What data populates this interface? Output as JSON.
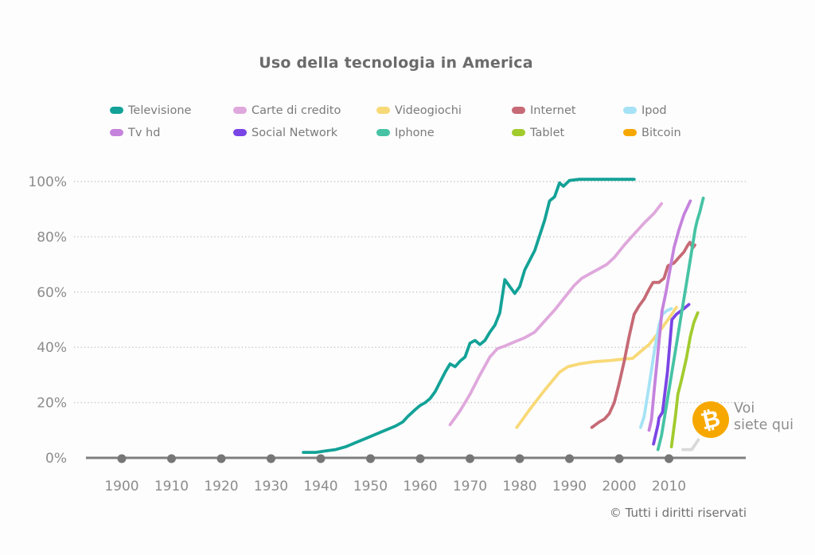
{
  "title_note": "static infographic line chart",
  "annotation": {
    "line1": "Voi",
    "line2": "siete qui",
    "icon": "bitcoin-coin",
    "symbol": "₿",
    "coin_color": "#f7a800"
  },
  "footer": {
    "copyright": "© Tutti i diritti riservati"
  },
  "chart_data": {
    "type": "line",
    "title": "Uso della tecnologia in America",
    "xlabel": "",
    "ylabel": "",
    "xlim": [
      1893,
      2018
    ],
    "ylim": [
      0,
      104
    ],
    "grid": "horizontal dotted",
    "legend_position": "top",
    "x_ticks": [
      1900,
      1910,
      1920,
      1930,
      1940,
      1950,
      1960,
      1970,
      1980,
      1990,
      2000,
      2010
    ],
    "y_ticks": [
      {
        "label": "0%",
        "value": 0
      },
      {
        "label": "20%",
        "value": 20
      },
      {
        "label": "40%",
        "value": 40
      },
      {
        "label": "60%",
        "value": 60
      },
      {
        "label": "80%",
        "value": 80
      },
      {
        "label": "100%",
        "value": 100
      }
    ],
    "colors": {
      "axis": "#7f7f7f",
      "axis_dots": "#767676",
      "gridline": "#c4c4c4",
      "tick_text": "#8c8c8c"
    },
    "series": [
      {
        "id": "televisione",
        "label": "Televisione",
        "color": "#13a297",
        "points": [
          [
            1936.5,
            2
          ],
          [
            1939,
            2
          ],
          [
            1941,
            2.5
          ],
          [
            1943,
            3
          ],
          [
            1945,
            4
          ],
          [
            1947,
            5.5
          ],
          [
            1949,
            7
          ],
          [
            1951,
            8.5
          ],
          [
            1953,
            10
          ],
          [
            1955,
            11.5
          ],
          [
            1956.5,
            13
          ],
          [
            1957.5,
            15
          ],
          [
            1959,
            17.5
          ],
          [
            1960,
            19
          ],
          [
            1961,
            20
          ],
          [
            1962,
            21.5
          ],
          [
            1963,
            24
          ],
          [
            1964,
            27.5
          ],
          [
            1965,
            31
          ],
          [
            1966,
            34
          ],
          [
            1967,
            33
          ],
          [
            1968,
            35
          ],
          [
            1969,
            36.5
          ],
          [
            1970,
            41.5
          ],
          [
            1971,
            42.5
          ],
          [
            1972,
            41
          ],
          [
            1973,
            42.5
          ],
          [
            1974,
            45.5
          ],
          [
            1975,
            48
          ],
          [
            1976,
            52.5
          ],
          [
            1977,
            64.5
          ],
          [
            1978,
            62
          ],
          [
            1979,
            59.5
          ],
          [
            1980,
            62
          ],
          [
            1981,
            68
          ],
          [
            1983,
            75
          ],
          [
            1985,
            86
          ],
          [
            1986,
            93
          ],
          [
            1987,
            94.5
          ],
          [
            1988,
            99.5
          ],
          [
            1988.8,
            98.3
          ],
          [
            1990,
            100.4
          ],
          [
            1992,
            100.8
          ],
          [
            1996,
            100.8
          ],
          [
            2000,
            100.8
          ],
          [
            2003,
            100.8
          ]
        ]
      },
      {
        "id": "carte-di-credito",
        "label": "Carte di credito",
        "color": "#dfa8dc",
        "points": [
          [
            1966,
            12
          ],
          [
            1968,
            17
          ],
          [
            1970,
            23
          ],
          [
            1972,
            30
          ],
          [
            1974,
            36.5
          ],
          [
            1975.5,
            39.5
          ],
          [
            1977,
            40.5
          ],
          [
            1979,
            42
          ],
          [
            1981,
            43.5
          ],
          [
            1983,
            45.5
          ],
          [
            1985,
            49.5
          ],
          [
            1987,
            53.5
          ],
          [
            1989,
            58
          ],
          [
            1991,
            62.5
          ],
          [
            1992.5,
            65
          ],
          [
            1994,
            66.5
          ],
          [
            1996,
            68.5
          ],
          [
            1997.5,
            70
          ],
          [
            1999,
            72.5
          ],
          [
            2001,
            77
          ],
          [
            2003,
            81
          ],
          [
            2005,
            85
          ],
          [
            2007,
            88.5
          ],
          [
            2008.5,
            92
          ]
        ]
      },
      {
        "id": "videogiochi",
        "label": "Videogiochi",
        "color": "#f8d977",
        "points": [
          [
            1979.4,
            11
          ],
          [
            1982,
            17.5
          ],
          [
            1985,
            24.5
          ],
          [
            1988,
            31
          ],
          [
            1989.7,
            33
          ],
          [
            1992,
            34
          ],
          [
            1995,
            34.8
          ],
          [
            1998,
            35.2
          ],
          [
            2001,
            35.8
          ],
          [
            2002.7,
            36
          ],
          [
            2004,
            38
          ],
          [
            2006,
            41
          ],
          [
            2008,
            45.5
          ],
          [
            2010,
            50.5
          ],
          [
            2011.5,
            54.5
          ]
        ]
      },
      {
        "id": "internet",
        "label": "Internet",
        "color": "#c66a76",
        "points": [
          [
            1994.5,
            11
          ],
          [
            1996,
            13
          ],
          [
            1997,
            14
          ],
          [
            1998,
            16
          ],
          [
            1999,
            20
          ],
          [
            2000,
            27
          ],
          [
            2001,
            35
          ],
          [
            2002,
            44
          ],
          [
            2003,
            52
          ],
          [
            2004,
            55
          ],
          [
            2005,
            57.5
          ],
          [
            2006,
            61
          ],
          [
            2006.8,
            63.5
          ],
          [
            2008,
            63.5
          ],
          [
            2009,
            65
          ],
          [
            2009.8,
            69.5
          ],
          [
            2011,
            70.5
          ],
          [
            2012,
            72.5
          ],
          [
            2013,
            74.5
          ],
          [
            2013.8,
            77
          ],
          [
            2014.2,
            78
          ],
          [
            2014.8,
            76
          ],
          [
            2015.2,
            77
          ]
        ]
      },
      {
        "id": "ipod",
        "label": "Ipod",
        "color": "#a5e2f5",
        "points": [
          [
            2004.3,
            11
          ],
          [
            2005,
            15
          ],
          [
            2006,
            26
          ],
          [
            2007,
            38
          ],
          [
            2008,
            48
          ],
          [
            2008.7,
            52
          ],
          [
            2009.5,
            53.2
          ],
          [
            2010.5,
            54
          ]
        ]
      },
      {
        "id": "tv-hd",
        "label": "Tv hd",
        "color": "#c583dd",
        "points": [
          [
            2006,
            10
          ],
          [
            2006.5,
            14
          ],
          [
            2007,
            24
          ],
          [
            2007.5,
            33
          ],
          [
            2008,
            42
          ],
          [
            2008.6,
            53
          ],
          [
            2009.4,
            60
          ],
          [
            2010,
            66
          ],
          [
            2011,
            76
          ],
          [
            2012,
            82.5
          ],
          [
            2013,
            88
          ],
          [
            2014.3,
            93
          ]
        ]
      },
      {
        "id": "social-network",
        "label": "Social Network",
        "color": "#7a45e5",
        "points": [
          [
            2006.9,
            5
          ],
          [
            2007.8,
            12
          ],
          [
            2008,
            14.5
          ],
          [
            2008.7,
            16.5
          ],
          [
            2009.7,
            31
          ],
          [
            2010.3,
            44
          ],
          [
            2010.6,
            50
          ],
          [
            2011.5,
            52
          ],
          [
            2013,
            54
          ],
          [
            2014,
            55.5
          ]
        ]
      },
      {
        "id": "iphone",
        "label": "Iphone",
        "color": "#46c3a4",
        "points": [
          [
            2007.8,
            3
          ],
          [
            2008.5,
            8
          ],
          [
            2009.5,
            19
          ],
          [
            2010.5,
            30
          ],
          [
            2011.5,
            41
          ],
          [
            2012.5,
            52
          ],
          [
            2013.5,
            63
          ],
          [
            2014.5,
            74
          ],
          [
            2015.3,
            83
          ],
          [
            2015.7,
            86
          ],
          [
            2016.2,
            89
          ],
          [
            2016.9,
            94
          ]
        ]
      },
      {
        "id": "tablet",
        "label": "Tablet",
        "color": "#a2cb2e",
        "points": [
          [
            2010.5,
            4
          ],
          [
            2011.3,
            15
          ],
          [
            2011.8,
            23
          ],
          [
            2012.5,
            28
          ],
          [
            2013.5,
            36
          ],
          [
            2014.3,
            44
          ],
          [
            2015,
            49
          ],
          [
            2015.8,
            52.5
          ]
        ]
      },
      {
        "id": "bitcoin",
        "label": "Bitcoin",
        "color": "#d9d9d9",
        "legend_color": "#f7a800",
        "points": [
          [
            2012.8,
            3
          ],
          [
            2014.6,
            3
          ],
          [
            2015.9,
            6.5
          ]
        ]
      }
    ]
  }
}
